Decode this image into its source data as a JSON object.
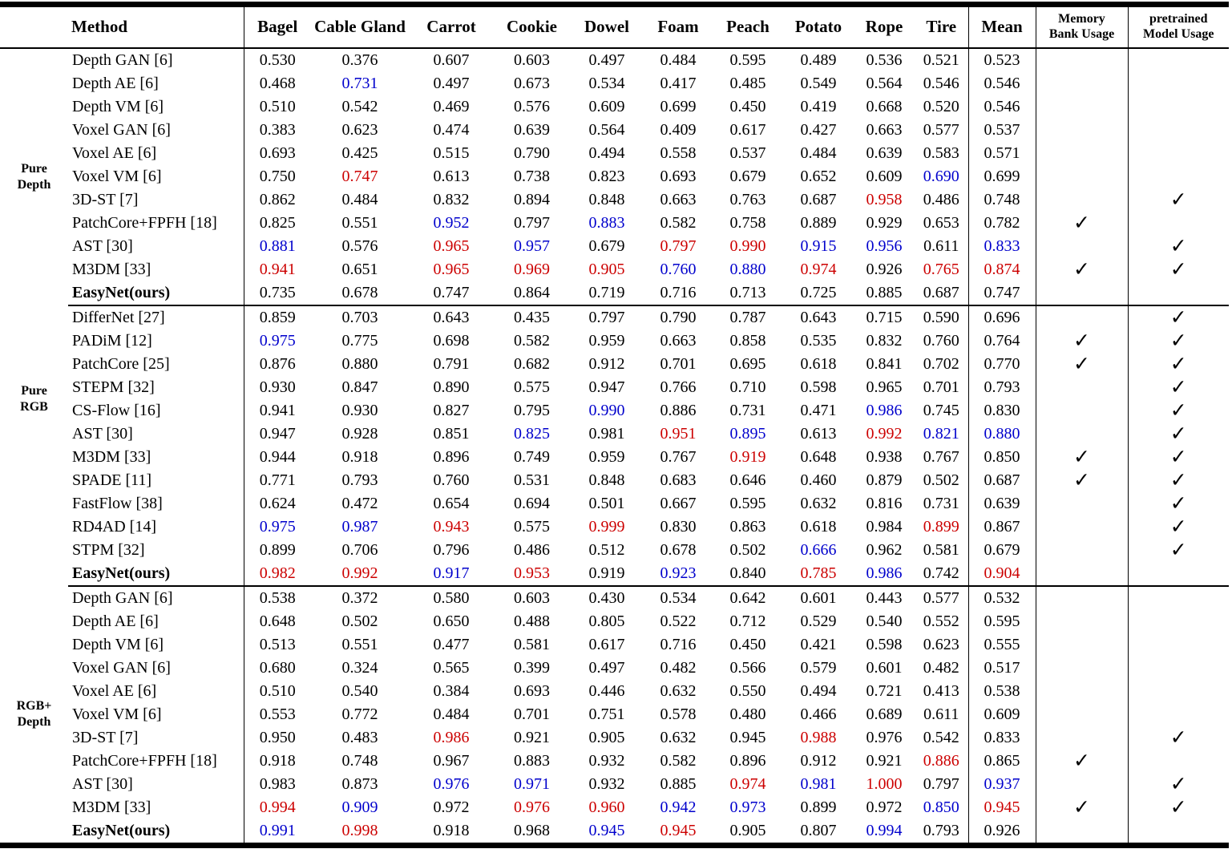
{
  "colors": {
    "r": "#cc0000",
    "b": "#0000cc",
    "k": "#000000"
  },
  "check_glyph": "✓",
  "header": {
    "method": "Method",
    "categories": [
      "Bagel",
      "Cable Gland",
      "Carrot",
      "Cookie",
      "Dowel",
      "Foam",
      "Peach",
      "Potato",
      "Rope",
      "Tire"
    ],
    "mean": "Mean",
    "memory_line1": "Memory",
    "memory_line2": "Bank Usage",
    "pretrained_line1": "pretrained",
    "pretrained_line2": "Model Usage"
  },
  "sections": [
    {
      "label_lines": [
        "Pure",
        "Depth"
      ],
      "rows": [
        {
          "method": "Depth GAN [6]",
          "bold": false,
          "values": [
            "0.530",
            "0.376",
            "0.607",
            "0.603",
            "0.497",
            "0.484",
            "0.595",
            "0.489",
            "0.536",
            "0.521",
            "0.523"
          ],
          "memory": false,
          "pretrained": false
        },
        {
          "method": "Depth AE [6]",
          "bold": false,
          "values": [
            "0.468",
            "b0.731",
            "0.497",
            "0.673",
            "0.534",
            "0.417",
            "0.485",
            "0.549",
            "0.564",
            "0.546",
            "0.546"
          ],
          "memory": false,
          "pretrained": false
        },
        {
          "method": "Depth VM [6]",
          "bold": false,
          "values": [
            "0.510",
            "0.542",
            "0.469",
            "0.576",
            "0.609",
            "0.699",
            "0.450",
            "0.419",
            "0.668",
            "0.520",
            "0.546"
          ],
          "memory": false,
          "pretrained": false
        },
        {
          "method": "Voxel GAN [6]",
          "bold": false,
          "values": [
            "0.383",
            "0.623",
            "0.474",
            "0.639",
            "0.564",
            "0.409",
            "0.617",
            "0.427",
            "0.663",
            "0.577",
            "0.537"
          ],
          "memory": false,
          "pretrained": false
        },
        {
          "method": "Voxel AE [6]",
          "bold": false,
          "values": [
            "0.693",
            "0.425",
            "0.515",
            "0.790",
            "0.494",
            "0.558",
            "0.537",
            "0.484",
            "0.639",
            "0.583",
            "0.571"
          ],
          "memory": false,
          "pretrained": false
        },
        {
          "method": "Voxel VM [6]",
          "bold": false,
          "values": [
            "0.750",
            "r0.747",
            "0.613",
            "0.738",
            "0.823",
            "0.693",
            "0.679",
            "0.652",
            "0.609",
            "b0.690",
            "0.699"
          ],
          "memory": false,
          "pretrained": false
        },
        {
          "method": "3D-ST [7]",
          "bold": false,
          "values": [
            "0.862",
            "0.484",
            "0.832",
            "0.894",
            "0.848",
            "0.663",
            "0.763",
            "0.687",
            "r0.958",
            "0.486",
            "0.748"
          ],
          "memory": false,
          "pretrained": true
        },
        {
          "method": "PatchCore+FPFH [18]",
          "bold": false,
          "values": [
            "0.825",
            "0.551",
            "b0.952",
            "0.797",
            "b0.883",
            "0.582",
            "0.758",
            "0.889",
            "0.929",
            "0.653",
            "0.782"
          ],
          "memory": true,
          "pretrained": false
        },
        {
          "method": "AST [30]",
          "bold": false,
          "values": [
            "b0.881",
            "0.576",
            "r0.965",
            "b0.957",
            "0.679",
            "r0.797",
            "r0.990",
            "b0.915",
            "b0.956",
            "0.611",
            "b0.833"
          ],
          "memory": false,
          "pretrained": true
        },
        {
          "method": "M3DM [33]",
          "bold": false,
          "values": [
            "r0.941",
            "0.651",
            "r0.965",
            "r0.969",
            "r0.905",
            "b0.760",
            "b0.880",
            "r0.974",
            "0.926",
            "r0.765",
            "r0.874"
          ],
          "memory": true,
          "pretrained": true
        },
        {
          "method": "EasyNet(ours)",
          "bold": true,
          "values": [
            "0.735",
            "0.678",
            "0.747",
            "0.864",
            "0.719",
            "0.716",
            "0.713",
            "0.725",
            "0.885",
            "0.687",
            "0.747"
          ],
          "memory": false,
          "pretrained": false
        }
      ]
    },
    {
      "label_lines": [
        "Pure",
        "RGB"
      ],
      "rows": [
        {
          "method": "DifferNet [27]",
          "bold": false,
          "values": [
            "0.859",
            "0.703",
            "0.643",
            "0.435",
            "0.797",
            "0.790",
            "0.787",
            "0.643",
            "0.715",
            "0.590",
            "0.696"
          ],
          "memory": false,
          "pretrained": true
        },
        {
          "method": "PADiM [12]",
          "bold": false,
          "values": [
            "b0.975",
            "0.775",
            "0.698",
            "0.582",
            "0.959",
            "0.663",
            "0.858",
            "0.535",
            "0.832",
            "0.760",
            "0.764"
          ],
          "memory": true,
          "pretrained": true
        },
        {
          "method": "PatchCore [25]",
          "bold": false,
          "values": [
            "0.876",
            "0.880",
            "0.791",
            "0.682",
            "0.912",
            "0.701",
            "0.695",
            "0.618",
            "0.841",
            "0.702",
            "0.770"
          ],
          "memory": true,
          "pretrained": true
        },
        {
          "method": "STEPM [32]",
          "bold": false,
          "values": [
            "0.930",
            "0.847",
            "0.890",
            "0.575",
            "0.947",
            "0.766",
            "0.710",
            "0.598",
            "0.965",
            "0.701",
            "0.793"
          ],
          "memory": false,
          "pretrained": true
        },
        {
          "method": "CS-Flow [16]",
          "bold": false,
          "values": [
            "0.941",
            "0.930",
            "0.827",
            "0.795",
            "b0.990",
            "0.886",
            "0.731",
            "0.471",
            "b0.986",
            "0.745",
            "0.830"
          ],
          "memory": false,
          "pretrained": true
        },
        {
          "method": "AST [30]",
          "bold": false,
          "values": [
            "0.947",
            "0.928",
            "0.851",
            "b0.825",
            "0.981",
            "r0.951",
            "b0.895",
            "0.613",
            "r0.992",
            "b0.821",
            "b0.880"
          ],
          "memory": false,
          "pretrained": true
        },
        {
          "method": "M3DM [33]",
          "bold": false,
          "values": [
            "0.944",
            "0.918",
            "0.896",
            "0.749",
            "0.959",
            "0.767",
            "r0.919",
            "0.648",
            "0.938",
            "0.767",
            "0.850"
          ],
          "memory": true,
          "pretrained": true
        },
        {
          "method": "SPADE [11]",
          "bold": false,
          "values": [
            "0.771",
            "0.793",
            "0.760",
            "0.531",
            "0.848",
            "0.683",
            "0.646",
            "0.460",
            "0.879",
            "0.502",
            "0.687"
          ],
          "memory": true,
          "pretrained": true
        },
        {
          "method": "FastFlow [38]",
          "bold": false,
          "values": [
            "0.624",
            "0.472",
            "0.654",
            "0.694",
            "0.501",
            "0.667",
            "0.595",
            "0.632",
            "0.816",
            "0.731",
            "0.639"
          ],
          "memory": false,
          "pretrained": true
        },
        {
          "method": "RD4AD [14]",
          "bold": false,
          "values": [
            "b0.975",
            "b0.987",
            "r0.943",
            "0.575",
            "r0.999",
            "0.830",
            "0.863",
            "0.618",
            "0.984",
            "r0.899",
            "0.867"
          ],
          "memory": false,
          "pretrained": true
        },
        {
          "method": "STPM [32]",
          "bold": false,
          "values": [
            "0.899",
            "0.706",
            "0.796",
            "0.486",
            "0.512",
            "0.678",
            "0.502",
            "b0.666",
            "0.962",
            "0.581",
            "0.679"
          ],
          "memory": false,
          "pretrained": true
        },
        {
          "method": "EasyNet(ours)",
          "bold": true,
          "values": [
            "r0.982",
            "r0.992",
            "b0.917",
            "r0.953",
            "0.919",
            "b0.923",
            "0.840",
            "r0.785",
            "b0.986",
            "0.742",
            "r0.904"
          ],
          "memory": false,
          "pretrained": false
        }
      ]
    },
    {
      "label_lines": [
        "RGB+",
        "Depth"
      ],
      "rows": [
        {
          "method": "Depth GAN [6]",
          "bold": false,
          "values": [
            "0.538",
            "0.372",
            "0.580",
            "0.603",
            "0.430",
            "0.534",
            "0.642",
            "0.601",
            "0.443",
            "0.577",
            "0.532"
          ],
          "memory": false,
          "pretrained": false
        },
        {
          "method": "Depth AE [6]",
          "bold": false,
          "values": [
            "0.648",
            "0.502",
            "0.650",
            "0.488",
            "0.805",
            "0.522",
            "0.712",
            "0.529",
            "0.540",
            "0.552",
            "0.595"
          ],
          "memory": false,
          "pretrained": false
        },
        {
          "method": "Depth VM [6]",
          "bold": false,
          "values": [
            "0.513",
            "0.551",
            "0.477",
            "0.581",
            "0.617",
            "0.716",
            "0.450",
            "0.421",
            "0.598",
            "0.623",
            "0.555"
          ],
          "memory": false,
          "pretrained": false
        },
        {
          "method": "Voxel GAN [6]",
          "bold": false,
          "values": [
            "0.680",
            "0.324",
            "0.565",
            "0.399",
            "0.497",
            "0.482",
            "0.566",
            "0.579",
            "0.601",
            "0.482",
            "0.517"
          ],
          "memory": false,
          "pretrained": false
        },
        {
          "method": "Voxel AE [6]",
          "bold": false,
          "values": [
            "0.510",
            "0.540",
            "0.384",
            "0.693",
            "0.446",
            "0.632",
            "0.550",
            "0.494",
            "0.721",
            "0.413",
            "0.538"
          ],
          "memory": false,
          "pretrained": false
        },
        {
          "method": "Voxel VM [6]",
          "bold": false,
          "values": [
            "0.553",
            "0.772",
            "0.484",
            "0.701",
            "0.751",
            "0.578",
            "0.480",
            "0.466",
            "0.689",
            "0.611",
            "0.609"
          ],
          "memory": false,
          "pretrained": false
        },
        {
          "method": "3D-ST [7]",
          "bold": false,
          "values": [
            "0.950",
            "0.483",
            "r0.986",
            "0.921",
            "0.905",
            "0.632",
            "0.945",
            "r0.988",
            "0.976",
            "0.542",
            "0.833"
          ],
          "memory": false,
          "pretrained": true
        },
        {
          "method": "PatchCore+FPFH [18]",
          "bold": false,
          "values": [
            "0.918",
            "0.748",
            "0.967",
            "0.883",
            "0.932",
            "0.582",
            "0.896",
            "0.912",
            "0.921",
            "r0.886",
            "0.865"
          ],
          "memory": true,
          "pretrained": false
        },
        {
          "method": "AST [30]",
          "bold": false,
          "values": [
            "0.983",
            "0.873",
            "b0.976",
            "b0.971",
            "0.932",
            "0.885",
            "r0.974",
            "b0.981",
            "r1.000",
            "0.797",
            "b0.937"
          ],
          "memory": false,
          "pretrained": true
        },
        {
          "method": "M3DM [33]",
          "bold": false,
          "values": [
            "r0.994",
            "b0.909",
            "0.972",
            "r0.976",
            "r0.960",
            "b0.942",
            "b0.973",
            "0.899",
            "0.972",
            "b0.850",
            "r0.945"
          ],
          "memory": true,
          "pretrained": true
        },
        {
          "method": "EasyNet(ours)",
          "bold": true,
          "values": [
            "b0.991",
            "r0.998",
            "0.918",
            "0.968",
            "b0.945",
            "r0.945",
            "0.905",
            "0.807",
            "b0.994",
            "0.793",
            "0.926"
          ],
          "memory": false,
          "pretrained": false
        }
      ]
    }
  ]
}
